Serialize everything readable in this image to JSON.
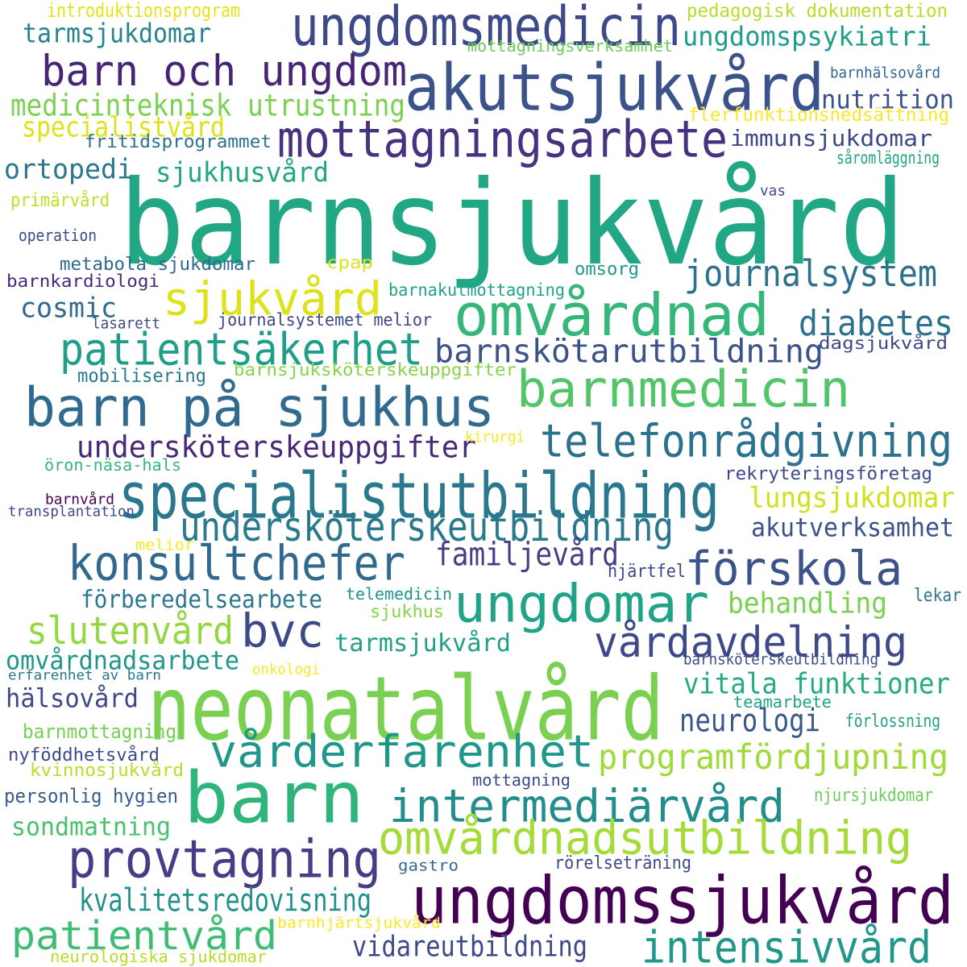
{
  "words": [
    {
      "text": "barnsjukvård",
      "color": "#22a785"
    },
    {
      "text": "neonatalvård",
      "color": "#7ad151"
    },
    {
      "text": "barn",
      "color": "#2fb47c"
    },
    {
      "text": "akutsjukvård",
      "color": "#3b528b"
    },
    {
      "text": "ungdomsmedicin",
      "color": "#3e4989"
    },
    {
      "text": "ungdomssjukvård",
      "color": "#440154"
    },
    {
      "text": "ungdomar",
      "color": "#20a386"
    },
    {
      "text": "omvårdnad",
      "color": "#35b779"
    },
    {
      "text": "specialistutbildning",
      "color": "#2a788e"
    },
    {
      "text": "barn på sjukhus",
      "color": "#306a8e"
    },
    {
      "text": "barnmedicin",
      "color": "#52c569"
    },
    {
      "text": "mottagningsarbete",
      "color": "#46327e"
    },
    {
      "text": "barn och ungdom",
      "color": "#482475"
    },
    {
      "text": "provtagning",
      "color": "#433e85"
    },
    {
      "text": "konsultchefer",
      "color": "#31688e"
    },
    {
      "text": "förskola",
      "color": "#3b528b"
    },
    {
      "text": "vårderfarenhet",
      "color": "#1f988b"
    },
    {
      "text": "intermediärvård",
      "color": "#228d8d"
    },
    {
      "text": "omvårdnadsutbildning",
      "color": "#a5db36"
    },
    {
      "text": "sjukvård",
      "color": "#dde318"
    },
    {
      "text": "patientsäkerhet",
      "color": "#1f9e89"
    },
    {
      "text": "telefonrådgivning",
      "color": "#2c728e"
    },
    {
      "text": "patientvård",
      "color": "#3dbc74"
    },
    {
      "text": "intensivvård",
      "color": "#1f988b"
    },
    {
      "text": "bvc",
      "color": "#3e4989"
    },
    {
      "text": "vårdavdelning",
      "color": "#3e4989"
    },
    {
      "text": "undersköterskeutbildning",
      "color": "#2a788e"
    },
    {
      "text": "journalsystem",
      "color": "#2c728e"
    },
    {
      "text": "barnskötarutbildning",
      "color": "#3b528b"
    },
    {
      "text": "programfördjupning",
      "color": "#9fda3a"
    },
    {
      "text": "slutenvård",
      "color": "#93d741"
    },
    {
      "text": "undersköterskeuppgifter",
      "color": "#482878"
    },
    {
      "text": "kvalitetsredovisning",
      "color": "#21918c"
    },
    {
      "text": "vidareutbildning",
      "color": "#3e4989"
    },
    {
      "text": "medicinteknisk utrustning",
      "color": "#7ad151"
    },
    {
      "text": "diabetes",
      "color": "#2c728e"
    },
    {
      "text": "vitala funktioner",
      "color": "#25ab82"
    },
    {
      "text": "familjevård",
      "color": "#433e85"
    },
    {
      "text": "lungsjukdomar",
      "color": "#d0e11c"
    },
    {
      "text": "ungdomspsykiatri",
      "color": "#1f9e89"
    },
    {
      "text": "tarmsjukdomar",
      "color": "#26828e"
    },
    {
      "text": "specialistvård",
      "color": "#dde318"
    },
    {
      "text": "ortopedi",
      "color": "#2a788e"
    },
    {
      "text": "sjukhusvård",
      "color": "#22a785"
    },
    {
      "text": "cosmic",
      "color": "#31688e"
    },
    {
      "text": "nutrition",
      "color": "#3b528b"
    },
    {
      "text": "behandling",
      "color": "#7ad151"
    },
    {
      "text": "neurologi",
      "color": "#38588c"
    },
    {
      "text": "akutverksamhet",
      "color": "#3b528b"
    },
    {
      "text": "förberedelsearbete",
      "color": "#2a788e"
    },
    {
      "text": "tarmsjukvård",
      "color": "#1fa188"
    },
    {
      "text": "omvårdnadsarbete",
      "color": "#1f988b"
    },
    {
      "text": "hälsovård",
      "color": "#3e4989"
    },
    {
      "text": "sondmatning",
      "color": "#4ac16d"
    },
    {
      "text": "personlig hygien",
      "color": "#365d8d"
    },
    {
      "text": "immunsjukdomar",
      "color": "#3e4989"
    },
    {
      "text": "pedagogisk dokumentation",
      "color": "#b5de2b"
    },
    {
      "text": "flerfunktionsnedsättning",
      "color": "#fde725"
    },
    {
      "text": "fritidsprogrammet",
      "color": "#2c728e"
    },
    {
      "text": "introduktionsprogram",
      "color": "#e5e419"
    },
    {
      "text": "mottagningsverksamhet",
      "color": "#6ccd5a"
    },
    {
      "text": "barnhälsovård",
      "color": "#31688e"
    },
    {
      "text": "såromläggning",
      "color": "#20a386"
    },
    {
      "text": "primärvård",
      "color": "#c2df23"
    },
    {
      "text": "operation",
      "color": "#3e4989"
    },
    {
      "text": "vas",
      "color": "#3e4989"
    },
    {
      "text": "metabola sjukdomar",
      "color": "#31688e"
    },
    {
      "text": "cpap",
      "color": "#dde318"
    },
    {
      "text": "omsorg",
      "color": "#1f988b"
    },
    {
      "text": "barnkardiologi",
      "color": "#482878"
    },
    {
      "text": "barnakutmottagning",
      "color": "#20a386"
    },
    {
      "text": "lasarett",
      "color": "#3e4989"
    },
    {
      "text": "journalsystemet melior",
      "color": "#3e4989"
    },
    {
      "text": "dagsjukvård",
      "color": "#3e4989"
    },
    {
      "text": "mobilisering",
      "color": "#2a788e"
    },
    {
      "text": "barnsjuksköterskeuppgifter",
      "color": "#86d549"
    },
    {
      "text": "kirurgi",
      "color": "#fde725"
    },
    {
      "text": "öron-näsa-hals",
      "color": "#35b779"
    },
    {
      "text": "rekryteringsföretag",
      "color": "#3e4989"
    },
    {
      "text": "barnvård",
      "color": "#440154"
    },
    {
      "text": "transplantation",
      "color": "#3e4989"
    },
    {
      "text": "melior",
      "color": "#fde725"
    },
    {
      "text": "hjärtfel",
      "color": "#3e4989"
    },
    {
      "text": "telemedicin",
      "color": "#1f988b"
    },
    {
      "text": "lekar",
      "color": "#2a788e"
    },
    {
      "text": "sjukhus",
      "color": "#86d549"
    },
    {
      "text": "erfarenhet av barn",
      "color": "#2a788e"
    },
    {
      "text": "onkologi",
      "color": "#fde725"
    },
    {
      "text": "barnsköterskeutbildning",
      "color": "#3e4989"
    },
    {
      "text": "teamarbete",
      "color": "#20a386"
    },
    {
      "text": "barnmottagning",
      "color": "#75d054"
    },
    {
      "text": "förlossning",
      "color": "#20a386"
    },
    {
      "text": "nyföddhetsvård",
      "color": "#3e4989"
    },
    {
      "text": "kvinnosjukvård",
      "color": "#b5de2b"
    },
    {
      "text": "mottagning",
      "color": "#3e4989"
    },
    {
      "text": "njursjukdomar",
      "color": "#6ccd5a"
    },
    {
      "text": "gastro",
      "color": "#31688e"
    },
    {
      "text": "rörelseträning",
      "color": "#3e4989"
    },
    {
      "text": "barnhjärtsjukvård",
      "color": "#fde725"
    },
    {
      "text": "neurologiska sjukdomar",
      "color": "#b5de2b"
    }
  ]
}
